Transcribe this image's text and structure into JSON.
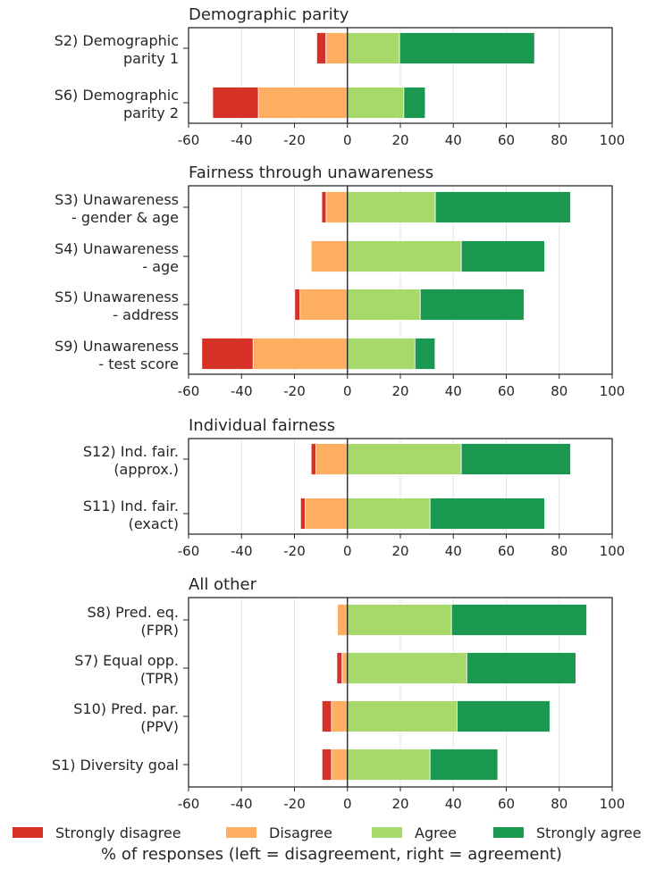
{
  "chart_data": {
    "type": "bar",
    "orientation": "horizontal",
    "stacked": "diverging",
    "xlabel": "% of responses (left = disagreement, right = agreement)",
    "xlim": [
      -60,
      100
    ],
    "xticks": [
      -60,
      -40,
      -20,
      0,
      20,
      40,
      60,
      80,
      100
    ],
    "grid": "vertical",
    "legend_placement": "bottom",
    "legend": [
      {
        "name": "Strongly disagree",
        "color": "#d73027"
      },
      {
        "name": "Disagree",
        "color": "#fdae61"
      },
      {
        "name": "Agree",
        "color": "#a6d96a"
      },
      {
        "name": "Strongly agree",
        "color": "#1a9850"
      }
    ],
    "panels": [
      {
        "title": "Demographic parity",
        "categories": [
          {
            "label": [
              "S2) Demographic",
              "parity 1"
            ],
            "strongly_disagree": 3.5,
            "disagree": 8.1,
            "agree": 19.7,
            "strongly_agree": 51.0
          },
          {
            "label": [
              "S6) Demographic",
              "parity 2"
            ],
            "strongly_disagree": 17.3,
            "disagree": 33.6,
            "agree": 21.3,
            "strongly_agree": 8.1
          }
        ]
      },
      {
        "title": "Fairness through unawareness",
        "categories": [
          {
            "label": [
              "S3) Unawareness",
              "- gender & age"
            ],
            "strongly_disagree": 1.7,
            "disagree": 8.0,
            "agree": 33.2,
            "strongly_agree": 51.1
          },
          {
            "label": [
              "S4) Unawareness",
              "- age"
            ],
            "strongly_disagree": 0,
            "disagree": 13.7,
            "agree": 43.0,
            "strongly_agree": 31.5
          },
          {
            "label": [
              "S5) Unawareness",
              "- address"
            ],
            "strongly_disagree": 2.0,
            "disagree": 17.9,
            "agree": 27.5,
            "strongly_agree": 39.2
          },
          {
            "label": [
              "S9) Unawareness",
              "- test score"
            ],
            "strongly_disagree": 19.4,
            "disagree": 35.6,
            "agree": 25.5,
            "strongly_agree": 7.6
          }
        ]
      },
      {
        "title": "Individual fairness",
        "categories": [
          {
            "label": [
              "S12) Ind. fair.",
              "(approx.)"
            ],
            "strongly_disagree": 1.8,
            "disagree": 11.9,
            "agree": 43.0,
            "strongly_agree": 41.3
          },
          {
            "label": [
              "S11) Ind. fair.",
              "(exact)"
            ],
            "strongly_disagree": 1.8,
            "disagree": 15.9,
            "agree": 31.2,
            "strongly_agree": 43.3
          }
        ]
      },
      {
        "title": "All other",
        "categories": [
          {
            "label": [
              "S8) Pred. eq.",
              "(FPR)"
            ],
            "strongly_disagree": 0,
            "disagree": 3.8,
            "agree": 39.3,
            "strongly_agree": 51.1
          },
          {
            "label": [
              "S7) Equal opp.",
              "(TPR)"
            ],
            "strongly_disagree": 2.0,
            "disagree": 2.0,
            "agree": 45.1,
            "strongly_agree": 41.2
          },
          {
            "label": [
              "S10) Pred. par.",
              "(PPV)"
            ],
            "strongly_disagree": 3.6,
            "disagree": 6.0,
            "agree": 41.4,
            "strongly_agree": 35.1
          },
          {
            "label": [
              "S1) Diversity goal"
            ],
            "strongly_disagree": 3.6,
            "disagree": 6.0,
            "agree": 31.2,
            "strongly_agree": 25.6
          }
        ]
      }
    ]
  }
}
